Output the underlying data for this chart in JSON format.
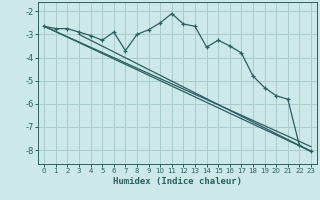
{
  "xlabel": "Humidex (Indice chaleur)",
  "background_color": "#cce8e8",
  "grid_color": "#aacccc",
  "line_color": "#2a6060",
  "xlim": [
    -0.5,
    23.5
  ],
  "ylim": [
    -8.6,
    -1.6
  ],
  "yticks": [
    -8,
    -7,
    -6,
    -5,
    -4,
    -3,
    -2
  ],
  "xticks": [
    0,
    1,
    2,
    3,
    4,
    5,
    6,
    7,
    8,
    9,
    10,
    11,
    12,
    13,
    14,
    15,
    16,
    17,
    18,
    19,
    20,
    21,
    22,
    23
  ],
  "series1_x": [
    0,
    1,
    2,
    3,
    4,
    5,
    6,
    7,
    8,
    9,
    10,
    11,
    12,
    13,
    14,
    15,
    16,
    17,
    18,
    19,
    20,
    21,
    22,
    23
  ],
  "series1_y": [
    -2.65,
    -2.75,
    -2.75,
    -2.9,
    -3.05,
    -3.25,
    -2.9,
    -3.7,
    -3.0,
    -2.8,
    -2.5,
    -2.1,
    -2.55,
    -2.65,
    -3.55,
    -3.25,
    -3.5,
    -3.8,
    -4.8,
    -5.3,
    -5.65,
    -5.8,
    -7.8,
    -8.05
  ],
  "series2_x": [
    0,
    23
  ],
  "series2_y": [
    -2.65,
    -8.05
  ],
  "series3_x": [
    3,
    23
  ],
  "series3_y": [
    -3.0,
    -8.05
  ],
  "series4_x": [
    0,
    23
  ],
  "series4_y": [
    -2.65,
    -7.85
  ]
}
